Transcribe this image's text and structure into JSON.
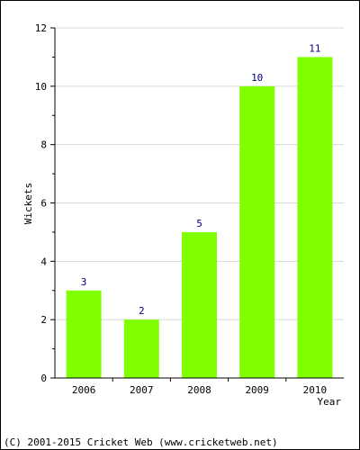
{
  "chart_data": {
    "type": "bar",
    "categories": [
      "2006",
      "2007",
      "2008",
      "2009",
      "2010"
    ],
    "values": [
      3,
      2,
      5,
      10,
      11
    ],
    "data_labels": [
      "3",
      "2",
      "5",
      "10",
      "11"
    ],
    "ylabel": "Wickets",
    "xlabel": "Year",
    "ylim": [
      0,
      12
    ],
    "y_ticks": [
      "0",
      "2",
      "4",
      "6",
      "8",
      "10",
      "12"
    ],
    "grid": true,
    "bar_color": "#80ff00",
    "value_label_color": "#000080"
  },
  "footer": {
    "copyright": "(C) 2001-2015 Cricket Web (www.cricketweb.net)"
  }
}
